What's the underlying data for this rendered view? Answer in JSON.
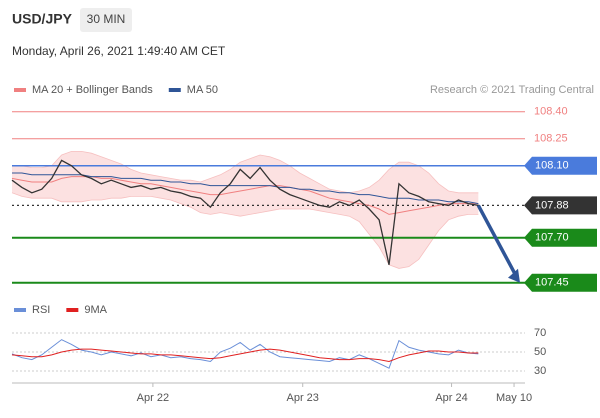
{
  "chart_data": {
    "type": "line",
    "title": "USD/JPY",
    "interval": "30 MIN",
    "subtitle": "Monday, April 26, 2021 1:49:40 AM CET",
    "credit": "Research © 2021 Trading Central",
    "x": [
      0,
      1,
      2,
      3,
      4,
      5,
      6,
      7,
      8,
      9,
      10,
      11,
      12,
      13,
      14,
      15,
      16,
      17,
      18,
      19,
      20,
      21,
      22,
      23,
      24,
      25,
      26,
      27,
      28,
      29,
      30,
      31,
      32,
      33,
      34,
      35,
      36,
      37,
      38,
      39,
      40,
      41,
      42,
      43,
      44,
      45,
      46,
      47
    ],
    "xlim": [
      0,
      51.2
    ],
    "xticks": [
      {
        "value": 14.2,
        "label": "Apr 22"
      },
      {
        "value": 29.3,
        "label": "Apr 23"
      },
      {
        "value": 44.3,
        "label": "Apr 24"
      },
      {
        "value": 50.6,
        "label": "May 10"
      }
    ],
    "ylim": [
      107.41,
      108.47
    ],
    "price": {
      "color": "#333333",
      "values": [
        108.02,
        107.98,
        107.95,
        107.97,
        108.03,
        108.13,
        108.1,
        108.05,
        108.03,
        108.0,
        108.02,
        108.0,
        107.98,
        107.99,
        107.97,
        107.98,
        107.96,
        107.95,
        107.93,
        107.92,
        107.87,
        107.95,
        108.0,
        108.08,
        108.03,
        108.09,
        108.02,
        107.97,
        107.94,
        107.92,
        107.9,
        107.88,
        107.87,
        107.9,
        107.88,
        107.91,
        107.86,
        107.8,
        107.55,
        108.0,
        107.95,
        107.93,
        107.9,
        107.89,
        107.88,
        107.91,
        107.89,
        107.88
      ]
    },
    "series": [
      {
        "name": "MA 20 + Bollinger Bands",
        "color": "#f08080",
        "values": [
          108.03,
          108.02,
          108.01,
          108.01,
          108.01,
          108.03,
          108.04,
          108.04,
          108.04,
          108.03,
          108.03,
          108.02,
          108.01,
          108.0,
          108.0,
          107.99,
          107.98,
          107.97,
          107.96,
          107.95,
          107.94,
          107.94,
          107.95,
          107.96,
          107.97,
          107.98,
          107.99,
          107.99,
          107.98,
          107.97,
          107.96,
          107.94,
          107.92,
          107.91,
          107.9,
          107.89,
          107.88,
          107.86,
          107.83,
          107.84,
          107.85,
          107.86,
          107.87,
          107.88,
          107.89,
          107.89,
          107.89,
          107.89
        ],
        "upper": [
          108.1,
          108.1,
          108.09,
          108.09,
          108.1,
          108.16,
          108.18,
          108.18,
          108.17,
          108.15,
          108.13,
          108.11,
          108.08,
          108.06,
          108.05,
          108.04,
          108.03,
          108.02,
          108.02,
          108.01,
          108.03,
          108.05,
          108.08,
          108.12,
          108.14,
          108.16,
          108.15,
          108.13,
          108.1,
          108.06,
          108.03,
          108.0,
          107.97,
          107.96,
          107.95,
          107.96,
          107.98,
          108.02,
          108.08,
          108.12,
          108.12,
          108.1,
          108.06,
          108.0,
          107.96,
          107.95,
          107.95,
          107.95
        ],
        "lower": [
          107.95,
          107.93,
          107.92,
          107.92,
          107.92,
          107.9,
          107.9,
          107.9,
          107.91,
          107.91,
          107.92,
          107.92,
          107.93,
          107.93,
          107.93,
          107.92,
          107.91,
          107.89,
          107.87,
          107.84,
          107.83,
          107.84,
          107.83,
          107.82,
          107.83,
          107.84,
          107.85,
          107.86,
          107.86,
          107.86,
          107.86,
          107.85,
          107.84,
          107.83,
          107.82,
          107.79,
          107.72,
          107.65,
          107.55,
          107.53,
          107.54,
          107.58,
          107.66,
          107.74,
          107.8,
          107.82,
          107.83,
          107.83
        ]
      },
      {
        "name": "MA 50",
        "color": "#2f5597",
        "values": [
          108.06,
          108.06,
          108.05,
          108.05,
          108.05,
          108.05,
          108.05,
          108.05,
          108.04,
          108.04,
          108.04,
          108.03,
          108.03,
          108.03,
          108.02,
          108.02,
          108.01,
          108.01,
          108.0,
          108.0,
          107.99,
          107.99,
          107.99,
          107.99,
          107.99,
          107.99,
          107.99,
          107.98,
          107.98,
          107.97,
          107.97,
          107.96,
          107.96,
          107.95,
          107.95,
          107.94,
          107.94,
          107.93,
          107.92,
          107.92,
          107.92,
          107.91,
          107.91,
          107.91,
          107.9,
          107.9,
          107.9,
          107.89
        ]
      }
    ],
    "levels": [
      {
        "value": 108.4,
        "label": "108.40",
        "color": "#f08080",
        "style": "text"
      },
      {
        "value": 108.25,
        "label": "108.25",
        "color": "#f08080",
        "style": "text"
      },
      {
        "value": 108.1,
        "label": "108.10",
        "color": "#4a7bdc",
        "style": "box"
      },
      {
        "value": 107.88,
        "label": "107.88",
        "color": "#333333",
        "style": "dotted"
      },
      {
        "value": 107.7,
        "label": "107.70",
        "color": "#1a8a1a",
        "style": "box"
      },
      {
        "value": 107.45,
        "label": "107.45",
        "color": "#1a8a1a",
        "style": "box"
      }
    ],
    "arrow": {
      "from": 107.88,
      "to": 107.45,
      "color": "#2f5597"
    },
    "rsi": {
      "ylim": [
        25,
        75
      ],
      "yticks": [
        70,
        50,
        30
      ],
      "series": [
        {
          "name": "RSI",
          "color": "#6a8fd8",
          "values": [
            48,
            44,
            42,
            47,
            55,
            63,
            58,
            52,
            50,
            47,
            50,
            48,
            46,
            49,
            45,
            47,
            44,
            45,
            43,
            42,
            40,
            50,
            54,
            60,
            52,
            58,
            50,
            45,
            44,
            43,
            42,
            41,
            40,
            44,
            42,
            47,
            43,
            38,
            33,
            62,
            55,
            52,
            50,
            48,
            47,
            52,
            49,
            48
          ]
        },
        {
          "name": "9MA",
          "color": "#e02020",
          "values": [
            47,
            46,
            45,
            45,
            47,
            50,
            52,
            53,
            53,
            52,
            51,
            50,
            49,
            48,
            48,
            47,
            47,
            46,
            45,
            44,
            43,
            44,
            46,
            48,
            50,
            52,
            53,
            52,
            50,
            48,
            46,
            44,
            43,
            42,
            42,
            43,
            43,
            42,
            40,
            44,
            47,
            49,
            51,
            51,
            50,
            50,
            49,
            49
          ]
        }
      ]
    }
  }
}
